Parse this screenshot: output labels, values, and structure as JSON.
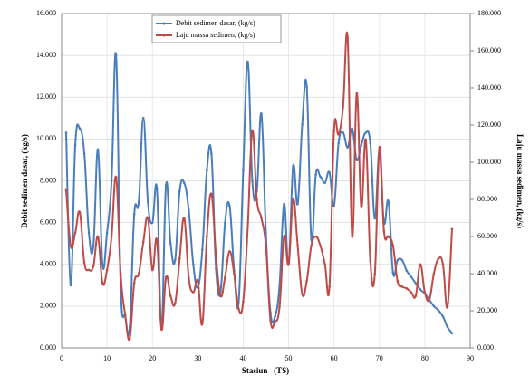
{
  "chart_data": {
    "type": "line",
    "x_label": "Stasiun   (TS)",
    "y_label": "Debit sedimen dasar, (kg/s)",
    "y2_label": "Laju massa sedimen, (kg/s)",
    "x": [
      1,
      2,
      3,
      4,
      5,
      6,
      7,
      8,
      9,
      10,
      11,
      12,
      13,
      14,
      15,
      16,
      17,
      18,
      19,
      20,
      21,
      22,
      23,
      24,
      25,
      26,
      27,
      28,
      29,
      30,
      31,
      32,
      33,
      34,
      35,
      36,
      37,
      38,
      39,
      40,
      41,
      42,
      43,
      44,
      45,
      46,
      47,
      48,
      49,
      50,
      51,
      52,
      53,
      54,
      55,
      56,
      57,
      58,
      59,
      60,
      61,
      62,
      63,
      64,
      65,
      66,
      67,
      68,
      69,
      70,
      71,
      72,
      73,
      74,
      75,
      76,
      77,
      78,
      79,
      80,
      81,
      82,
      83,
      84,
      85,
      86
    ],
    "series": [
      {
        "name": "Debit sedimen dasar, (kg/s)",
        "color": "#4a7ebb",
        "values": [
          10.3,
          3.0,
          9.7,
          10.5,
          9.3,
          5.5,
          4.9,
          9.5,
          4.0,
          5.5,
          8.0,
          14.0,
          3.0,
          1.5,
          1.0,
          6.4,
          7.0,
          11.0,
          7.0,
          6.0,
          7.6,
          1.0,
          7.8,
          5.0,
          4.2,
          7.5,
          7.9,
          6.6,
          4.0,
          2.9,
          4.7,
          8.5,
          9.3,
          3.8,
          2.7,
          6.0,
          6.8,
          3.7,
          2.2,
          8.5,
          13.7,
          8.0,
          7.5,
          11.2,
          5.5,
          1.7,
          1.5,
          3.0,
          6.9,
          4.0,
          8.7,
          6.9,
          10.7,
          12.5,
          5.2,
          8.3,
          8.2,
          7.9,
          8.4,
          6.8,
          9.8,
          10.3,
          9.6,
          10.5,
          9.0,
          9.7,
          10.3,
          9.8,
          6.2,
          9.4,
          6.0,
          7.0,
          3.6,
          4.2,
          4.2,
          3.7,
          3.4,
          3.1,
          2.8,
          2.6,
          2.3,
          2.0,
          1.8,
          1.5,
          1.0,
          0.7
        ]
      },
      {
        "name": "Laju massa sedimen, (kg/s)",
        "color": "#be4b48",
        "axis": "y2",
        "values": [
          85,
          55,
          62,
          73,
          46,
          42,
          44,
          60,
          35,
          42,
          60,
          92,
          40,
          18,
          5,
          35,
          40,
          57,
          70,
          42,
          58,
          10,
          38,
          28,
          24,
          48,
          70,
          38,
          30,
          36,
          13,
          60,
          83,
          50,
          28,
          38,
          52,
          40,
          21,
          25,
          65,
          117,
          80,
          70,
          55,
          15,
          14,
          22,
          60,
          45,
          80,
          55,
          29,
          36,
          55,
          60,
          55,
          45,
          33,
          117,
          115,
          130,
          167,
          60,
          137,
          76,
          112,
          47,
          40,
          108,
          63,
          60,
          55,
          36,
          33,
          32,
          30,
          28,
          45,
          30,
          26,
          40,
          48,
          45,
          22,
          64
        ]
      }
    ],
    "xlim": [
      0,
      90
    ],
    "xticks": [
      0,
      10,
      20,
      30,
      40,
      50,
      60,
      70,
      80,
      90
    ],
    "ylim": [
      0,
      16
    ],
    "yticks": [
      {
        "value": 0,
        "label": "0.000"
      },
      {
        "value": 2,
        "label": "2.000"
      },
      {
        "value": 4,
        "label": "4.000"
      },
      {
        "value": 6,
        "label": "6.000"
      },
      {
        "value": 8,
        "label": "8.000"
      },
      {
        "value": 10,
        "label": "10.000"
      },
      {
        "value": 12,
        "label": "12.000"
      },
      {
        "value": 14,
        "label": "14.000"
      },
      {
        "value": 16,
        "label": "16.000"
      }
    ],
    "y2lim": [
      0,
      180
    ],
    "y2ticks": [
      {
        "value": 0,
        "label": "0.000"
      },
      {
        "value": 20,
        "label": "20.000"
      },
      {
        "value": 40,
        "label": "40.000"
      },
      {
        "value": 60,
        "label": "60.000"
      },
      {
        "value": 80,
        "label": "80.000"
      },
      {
        "value": 100,
        "label": "100.000"
      },
      {
        "value": 120,
        "label": "120.000"
      },
      {
        "value": 140,
        "label": "140.000"
      },
      {
        "value": 160,
        "label": "160.000"
      },
      {
        "value": 180,
        "label": "180.000"
      }
    ],
    "grid": true
  }
}
